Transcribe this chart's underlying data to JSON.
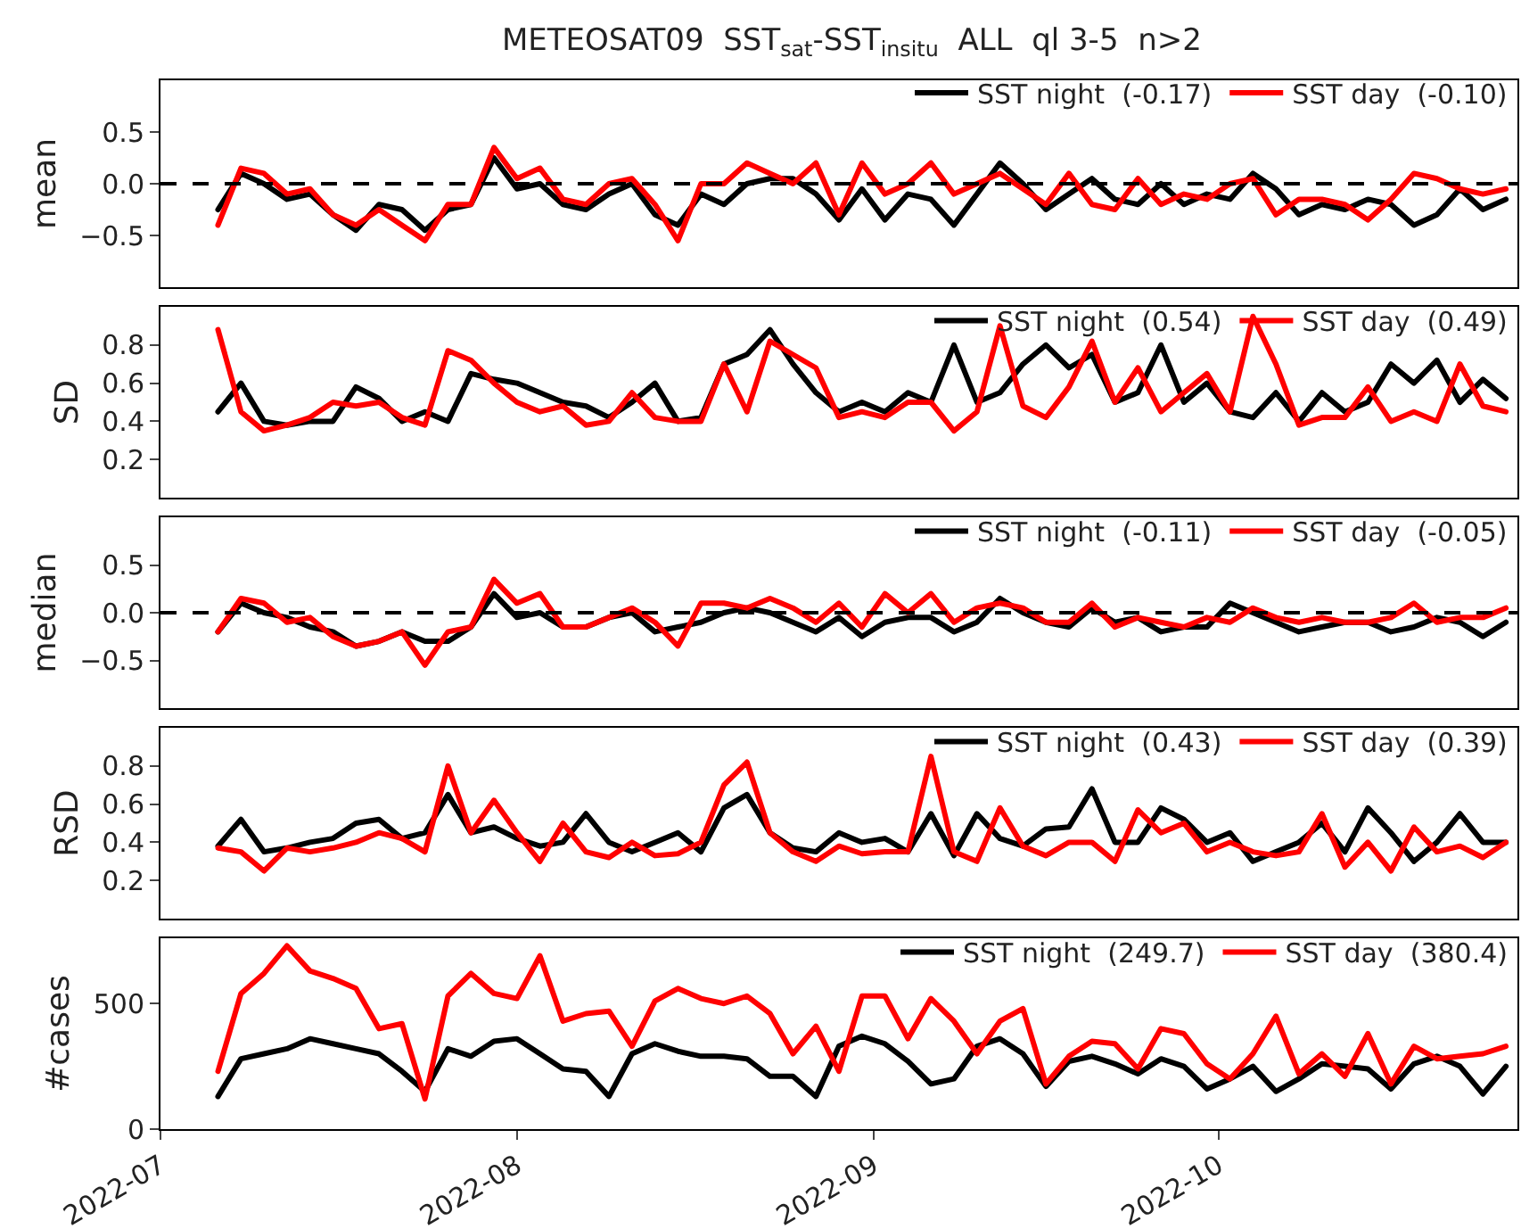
{
  "chart_data": [
    {
      "type": "line",
      "title": "METEOSAT09  SST$_{sat}$-SST$_{insitu}$  ALL  ql 3-5  n>2",
      "ylabel": "mean",
      "x": [
        "2022-07-06",
        "2022-07-08",
        "2022-07-10",
        "2022-07-12",
        "2022-07-14",
        "2022-07-16",
        "2022-07-18",
        "2022-07-20",
        "2022-07-22",
        "2022-07-24",
        "2022-07-26",
        "2022-07-28",
        "2022-07-30",
        "2022-08-01",
        "2022-08-03",
        "2022-08-05",
        "2022-08-07",
        "2022-08-09",
        "2022-08-11",
        "2022-08-13",
        "2022-08-15",
        "2022-08-17",
        "2022-08-19",
        "2022-08-21",
        "2022-08-23",
        "2022-08-25",
        "2022-08-27",
        "2022-08-29",
        "2022-08-31",
        "2022-09-02",
        "2022-09-04",
        "2022-09-06",
        "2022-09-08",
        "2022-09-10",
        "2022-09-12",
        "2022-09-14",
        "2022-09-16",
        "2022-09-18",
        "2022-09-20",
        "2022-09-22",
        "2022-09-24",
        "2022-09-26",
        "2022-09-28",
        "2022-09-30",
        "2022-10-02",
        "2022-10-04",
        "2022-10-06",
        "2022-10-08",
        "2022-10-10",
        "2022-10-12",
        "2022-10-14",
        "2022-10-16",
        "2022-10-18",
        "2022-10-20",
        "2022-10-22",
        "2022-10-24",
        "2022-10-26"
      ],
      "series": [
        {
          "name": "SST night  (-0.17)",
          "color": "#000000",
          "values": [
            -0.25,
            0.1,
            0.0,
            -0.15,
            -0.1,
            -0.3,
            -0.45,
            -0.2,
            -0.25,
            -0.45,
            -0.25,
            -0.2,
            0.25,
            -0.05,
            0.0,
            -0.2,
            -0.25,
            -0.1,
            0.0,
            -0.3,
            -0.4,
            -0.1,
            -0.2,
            0.0,
            0.05,
            0.05,
            -0.1,
            -0.35,
            -0.05,
            -0.35,
            -0.1,
            -0.15,
            -0.4,
            -0.1,
            0.2,
            0.0,
            -0.25,
            -0.1,
            0.05,
            -0.15,
            -0.2,
            0.0,
            -0.2,
            -0.1,
            -0.15,
            0.1,
            -0.05,
            -0.3,
            -0.2,
            -0.25,
            -0.15,
            -0.2,
            -0.4,
            -0.3,
            -0.05,
            -0.25,
            -0.15
          ]
        },
        {
          "name": "SST day  (-0.10)",
          "color": "#ff0000",
          "values": [
            -0.4,
            0.15,
            0.1,
            -0.1,
            -0.05,
            -0.3,
            -0.4,
            -0.25,
            -0.4,
            -0.55,
            -0.2,
            -0.2,
            0.35,
            0.05,
            0.15,
            -0.15,
            -0.2,
            0.0,
            0.05,
            -0.2,
            -0.55,
            0.0,
            0.0,
            0.2,
            0.1,
            0.0,
            0.2,
            -0.3,
            0.2,
            -0.1,
            0.0,
            0.2,
            -0.1,
            0.0,
            0.1,
            -0.05,
            -0.2,
            0.1,
            -0.2,
            -0.25,
            0.05,
            -0.2,
            -0.1,
            -0.15,
            0.0,
            0.05,
            -0.3,
            -0.15,
            -0.15,
            -0.2,
            -0.35,
            -0.15,
            0.1,
            0.05,
            -0.05,
            -0.1,
            -0.05
          ]
        }
      ],
      "xlim": [
        "2022-07-01",
        "2022-10-27"
      ],
      "xticks": [
        {
          "value": "2022-07-01",
          "label": null
        },
        {
          "value": "2022-08-01",
          "label": null
        },
        {
          "value": "2022-09-01",
          "label": null
        },
        {
          "value": "2022-10-01",
          "label": null
        }
      ],
      "ylim": [
        -1,
        1
      ],
      "yticks": [
        {
          "value": -0.5,
          "label": "−0.5"
        },
        {
          "value": 0,
          "label": "0.0"
        },
        {
          "value": 0.5,
          "label": "0.5"
        }
      ],
      "ref_lines": [
        {
          "axis": "y",
          "value": 0,
          "color": "#000000",
          "line_style": "dashed"
        }
      ],
      "legend": "top right",
      "tick_labels": "y"
    },
    {
      "type": "line",
      "ylabel": "SD",
      "x": [
        "2022-07-06",
        "2022-07-08",
        "2022-07-10",
        "2022-07-12",
        "2022-07-14",
        "2022-07-16",
        "2022-07-18",
        "2022-07-20",
        "2022-07-22",
        "2022-07-24",
        "2022-07-26",
        "2022-07-28",
        "2022-07-30",
        "2022-08-01",
        "2022-08-03",
        "2022-08-05",
        "2022-08-07",
        "2022-08-09",
        "2022-08-11",
        "2022-08-13",
        "2022-08-15",
        "2022-08-17",
        "2022-08-19",
        "2022-08-21",
        "2022-08-23",
        "2022-08-25",
        "2022-08-27",
        "2022-08-29",
        "2022-08-31",
        "2022-09-02",
        "2022-09-04",
        "2022-09-06",
        "2022-09-08",
        "2022-09-10",
        "2022-09-12",
        "2022-09-14",
        "2022-09-16",
        "2022-09-18",
        "2022-09-20",
        "2022-09-22",
        "2022-09-24",
        "2022-09-26",
        "2022-09-28",
        "2022-09-30",
        "2022-10-02",
        "2022-10-04",
        "2022-10-06",
        "2022-10-08",
        "2022-10-10",
        "2022-10-12",
        "2022-10-14",
        "2022-10-16",
        "2022-10-18",
        "2022-10-20",
        "2022-10-22",
        "2022-10-24",
        "2022-10-26"
      ],
      "series": [
        {
          "name": "SST night  (0.54)",
          "color": "#000000",
          "values": [
            0.45,
            0.6,
            0.4,
            0.38,
            0.4,
            0.4,
            0.58,
            0.52,
            0.4,
            0.45,
            0.4,
            0.65,
            0.62,
            0.6,
            0.55,
            0.5,
            0.48,
            0.42,
            0.5,
            0.6,
            0.4,
            0.42,
            0.7,
            0.75,
            0.88,
            0.7,
            0.55,
            0.45,
            0.5,
            0.45,
            0.55,
            0.5,
            0.8,
            0.5,
            0.55,
            0.7,
            0.8,
            0.68,
            0.75,
            0.5,
            0.55,
            0.8,
            0.5,
            0.6,
            0.45,
            0.42,
            0.55,
            0.4,
            0.55,
            0.45,
            0.5,
            0.7,
            0.6,
            0.72,
            0.5,
            0.62,
            0.52
          ]
        },
        {
          "name": "SST day  (0.49)",
          "color": "#ff0000",
          "values": [
            0.88,
            0.45,
            0.35,
            0.38,
            0.42,
            0.5,
            0.48,
            0.5,
            0.42,
            0.38,
            0.77,
            0.72,
            0.6,
            0.5,
            0.45,
            0.48,
            0.38,
            0.4,
            0.55,
            0.42,
            0.4,
            0.4,
            0.7,
            0.45,
            0.82,
            0.75,
            0.68,
            0.42,
            0.45,
            0.42,
            0.5,
            0.5,
            0.35,
            0.45,
            0.9,
            0.48,
            0.42,
            0.58,
            0.82,
            0.5,
            0.68,
            0.45,
            0.55,
            0.65,
            0.45,
            0.95,
            0.7,
            0.38,
            0.42,
            0.42,
            0.58,
            0.4,
            0.45,
            0.4,
            0.7,
            0.48,
            0.45
          ]
        }
      ],
      "xlim": [
        "2022-07-01",
        "2022-10-27"
      ],
      "xticks": [
        {
          "value": "2022-07-01",
          "label": null
        },
        {
          "value": "2022-08-01",
          "label": null
        },
        {
          "value": "2022-09-01",
          "label": null
        },
        {
          "value": "2022-10-01",
          "label": null
        }
      ],
      "ylim": [
        0,
        1
      ],
      "yticks": [
        0.2,
        0.4,
        0.6,
        0.8
      ],
      "legend": "top right",
      "tick_labels": "y"
    },
    {
      "type": "line",
      "ylabel": "median",
      "x": [
        "2022-07-06",
        "2022-07-08",
        "2022-07-10",
        "2022-07-12",
        "2022-07-14",
        "2022-07-16",
        "2022-07-18",
        "2022-07-20",
        "2022-07-22",
        "2022-07-24",
        "2022-07-26",
        "2022-07-28",
        "2022-07-30",
        "2022-08-01",
        "2022-08-03",
        "2022-08-05",
        "2022-08-07",
        "2022-08-09",
        "2022-08-11",
        "2022-08-13",
        "2022-08-15",
        "2022-08-17",
        "2022-08-19",
        "2022-08-21",
        "2022-08-23",
        "2022-08-25",
        "2022-08-27",
        "2022-08-29",
        "2022-08-31",
        "2022-09-02",
        "2022-09-04",
        "2022-09-06",
        "2022-09-08",
        "2022-09-10",
        "2022-09-12",
        "2022-09-14",
        "2022-09-16",
        "2022-09-18",
        "2022-09-20",
        "2022-09-22",
        "2022-09-24",
        "2022-09-26",
        "2022-09-28",
        "2022-09-30",
        "2022-10-02",
        "2022-10-04",
        "2022-10-06",
        "2022-10-08",
        "2022-10-10",
        "2022-10-12",
        "2022-10-14",
        "2022-10-16",
        "2022-10-18",
        "2022-10-20",
        "2022-10-22",
        "2022-10-24",
        "2022-10-26"
      ],
      "series": [
        {
          "name": "SST night  (-0.11)",
          "color": "#000000",
          "values": [
            -0.2,
            0.1,
            0.0,
            -0.05,
            -0.15,
            -0.2,
            -0.35,
            -0.3,
            -0.2,
            -0.3,
            -0.3,
            -0.15,
            0.2,
            -0.05,
            0.0,
            -0.15,
            -0.15,
            -0.05,
            0.0,
            -0.2,
            -0.15,
            -0.1,
            0.0,
            0.05,
            0.0,
            -0.1,
            -0.2,
            -0.05,
            -0.25,
            -0.1,
            -0.05,
            -0.05,
            -0.2,
            -0.1,
            0.15,
            0.0,
            -0.1,
            -0.15,
            0.05,
            -0.1,
            -0.05,
            -0.2,
            -0.15,
            -0.15,
            0.1,
            0.0,
            -0.1,
            -0.2,
            -0.15,
            -0.1,
            -0.1,
            -0.2,
            -0.15,
            -0.05,
            -0.1,
            -0.25,
            -0.1
          ]
        },
        {
          "name": "SST day  (-0.05)",
          "color": "#ff0000",
          "values": [
            -0.2,
            0.15,
            0.1,
            -0.1,
            -0.05,
            -0.25,
            -0.35,
            -0.3,
            -0.2,
            -0.55,
            -0.2,
            -0.15,
            0.35,
            0.1,
            0.2,
            -0.15,
            -0.15,
            -0.05,
            0.05,
            -0.1,
            -0.35,
            0.1,
            0.1,
            0.05,
            0.15,
            0.05,
            -0.1,
            0.1,
            -0.15,
            0.2,
            0.0,
            0.2,
            -0.1,
            0.05,
            0.1,
            0.05,
            -0.1,
            -0.1,
            0.1,
            -0.15,
            -0.05,
            -0.1,
            -0.15,
            -0.05,
            -0.1,
            0.05,
            -0.05,
            -0.1,
            -0.05,
            -0.1,
            -0.1,
            -0.05,
            0.1,
            -0.1,
            -0.05,
            -0.05,
            0.05
          ]
        }
      ],
      "xlim": [
        "2022-07-01",
        "2022-10-27"
      ],
      "xticks": [
        {
          "value": "2022-07-01",
          "label": null
        },
        {
          "value": "2022-08-01",
          "label": null
        },
        {
          "value": "2022-09-01",
          "label": null
        },
        {
          "value": "2022-10-01",
          "label": null
        }
      ],
      "ylim": [
        -1,
        1
      ],
      "yticks": [
        {
          "value": -0.5,
          "label": "−0.5"
        },
        {
          "value": 0,
          "label": "0.0"
        },
        {
          "value": 0.5,
          "label": "0.5"
        }
      ],
      "ref_lines": [
        {
          "axis": "y",
          "value": 0,
          "color": "#000000",
          "line_style": "dashed"
        }
      ],
      "legend": "top right",
      "tick_labels": "y"
    },
    {
      "type": "line",
      "ylabel": "RSD",
      "x": [
        "2022-07-06",
        "2022-07-08",
        "2022-07-10",
        "2022-07-12",
        "2022-07-14",
        "2022-07-16",
        "2022-07-18",
        "2022-07-20",
        "2022-07-22",
        "2022-07-24",
        "2022-07-26",
        "2022-07-28",
        "2022-07-30",
        "2022-08-01",
        "2022-08-03",
        "2022-08-05",
        "2022-08-07",
        "2022-08-09",
        "2022-08-11",
        "2022-08-13",
        "2022-08-15",
        "2022-08-17",
        "2022-08-19",
        "2022-08-21",
        "2022-08-23",
        "2022-08-25",
        "2022-08-27",
        "2022-08-29",
        "2022-08-31",
        "2022-09-02",
        "2022-09-04",
        "2022-09-06",
        "2022-09-08",
        "2022-09-10",
        "2022-09-12",
        "2022-09-14",
        "2022-09-16",
        "2022-09-18",
        "2022-09-20",
        "2022-09-22",
        "2022-09-24",
        "2022-09-26",
        "2022-09-28",
        "2022-09-30",
        "2022-10-02",
        "2022-10-04",
        "2022-10-06",
        "2022-10-08",
        "2022-10-10",
        "2022-10-12",
        "2022-10-14",
        "2022-10-16",
        "2022-10-18",
        "2022-10-20",
        "2022-10-22",
        "2022-10-24",
        "2022-10-26"
      ],
      "series": [
        {
          "name": "SST night  (0.43)",
          "color": "#000000",
          "values": [
            0.38,
            0.52,
            0.35,
            0.37,
            0.4,
            0.42,
            0.5,
            0.52,
            0.42,
            0.45,
            0.65,
            0.45,
            0.48,
            0.42,
            0.38,
            0.4,
            0.55,
            0.4,
            0.35,
            0.4,
            0.45,
            0.35,
            0.58,
            0.65,
            0.45,
            0.37,
            0.35,
            0.45,
            0.4,
            0.42,
            0.35,
            0.55,
            0.33,
            0.55,
            0.42,
            0.38,
            0.47,
            0.48,
            0.68,
            0.4,
            0.4,
            0.58,
            0.52,
            0.4,
            0.45,
            0.3,
            0.35,
            0.4,
            0.5,
            0.35,
            0.58,
            0.45,
            0.3,
            0.4,
            0.55,
            0.4,
            0.4
          ]
        },
        {
          "name": "SST day  (0.39)",
          "color": "#ff0000",
          "values": [
            0.37,
            0.35,
            0.25,
            0.37,
            0.35,
            0.37,
            0.4,
            0.45,
            0.42,
            0.35,
            0.8,
            0.45,
            0.62,
            0.45,
            0.3,
            0.5,
            0.35,
            0.32,
            0.4,
            0.33,
            0.34,
            0.4,
            0.7,
            0.82,
            0.45,
            0.35,
            0.3,
            0.38,
            0.34,
            0.35,
            0.35,
            0.85,
            0.35,
            0.3,
            0.58,
            0.38,
            0.33,
            0.4,
            0.4,
            0.3,
            0.57,
            0.45,
            0.5,
            0.35,
            0.4,
            0.35,
            0.33,
            0.35,
            0.55,
            0.27,
            0.4,
            0.25,
            0.48,
            0.35,
            0.38,
            0.32,
            0.4
          ]
        }
      ],
      "xlim": [
        "2022-07-01",
        "2022-10-27"
      ],
      "xticks": [
        {
          "value": "2022-07-01",
          "label": null
        },
        {
          "value": "2022-08-01",
          "label": null
        },
        {
          "value": "2022-09-01",
          "label": null
        },
        {
          "value": "2022-10-01",
          "label": null
        }
      ],
      "ylim": [
        0,
        1
      ],
      "yticks": [
        0.2,
        0.4,
        0.6,
        0.8
      ],
      "legend": "top right",
      "tick_labels": "y"
    },
    {
      "type": "line",
      "ylabel": "#cases",
      "x": [
        "2022-07-06",
        "2022-07-08",
        "2022-07-10",
        "2022-07-12",
        "2022-07-14",
        "2022-07-16",
        "2022-07-18",
        "2022-07-20",
        "2022-07-22",
        "2022-07-24",
        "2022-07-26",
        "2022-07-28",
        "2022-07-30",
        "2022-08-01",
        "2022-08-03",
        "2022-08-05",
        "2022-08-07",
        "2022-08-09",
        "2022-08-11",
        "2022-08-13",
        "2022-08-15",
        "2022-08-17",
        "2022-08-19",
        "2022-08-21",
        "2022-08-23",
        "2022-08-25",
        "2022-08-27",
        "2022-08-29",
        "2022-08-31",
        "2022-09-02",
        "2022-09-04",
        "2022-09-06",
        "2022-09-08",
        "2022-09-10",
        "2022-09-12",
        "2022-09-14",
        "2022-09-16",
        "2022-09-18",
        "2022-09-20",
        "2022-09-22",
        "2022-09-24",
        "2022-09-26",
        "2022-09-28",
        "2022-09-30",
        "2022-10-02",
        "2022-10-04",
        "2022-10-06",
        "2022-10-08",
        "2022-10-10",
        "2022-10-12",
        "2022-10-14",
        "2022-10-16",
        "2022-10-18",
        "2022-10-20",
        "2022-10-22",
        "2022-10-24",
        "2022-10-26"
      ],
      "series": [
        {
          "name": "SST night  (249.7)",
          "color": "#000000",
          "values": [
            130,
            280,
            300,
            320,
            360,
            340,
            320,
            300,
            230,
            150,
            320,
            290,
            350,
            360,
            300,
            240,
            230,
            130,
            300,
            340,
            310,
            290,
            290,
            280,
            210,
            210,
            130,
            330,
            370,
            340,
            270,
            180,
            200,
            330,
            360,
            300,
            170,
            270,
            290,
            260,
            220,
            280,
            250,
            160,
            200,
            250,
            150,
            200,
            260,
            250,
            240,
            160,
            260,
            290,
            250,
            140,
            250
          ]
        },
        {
          "name": "SST day  (380.4)",
          "color": "#ff0000",
          "values": [
            230,
            540,
            620,
            730,
            630,
            600,
            560,
            400,
            420,
            120,
            530,
            620,
            540,
            520,
            690,
            430,
            460,
            470,
            330,
            510,
            560,
            520,
            500,
            530,
            460,
            300,
            410,
            230,
            530,
            530,
            360,
            520,
            430,
            300,
            430,
            480,
            180,
            290,
            350,
            340,
            240,
            400,
            380,
            260,
            200,
            300,
            450,
            220,
            300,
            210,
            380,
            180,
            330,
            280,
            290,
            300,
            330
          ]
        }
      ],
      "xlim": [
        "2022-07-01",
        "2022-10-27"
      ],
      "xticks": [
        {
          "value": "2022-07-01",
          "label": "2022-07"
        },
        {
          "value": "2022-08-01",
          "label": "2022-08"
        },
        {
          "value": "2022-09-01",
          "label": "2022-09"
        },
        {
          "value": "2022-10-01",
          "label": "2022-10"
        }
      ],
      "ylim": [
        0,
        760
      ],
      "yticks": [
        0,
        500
      ],
      "legend": "top right"
    }
  ]
}
